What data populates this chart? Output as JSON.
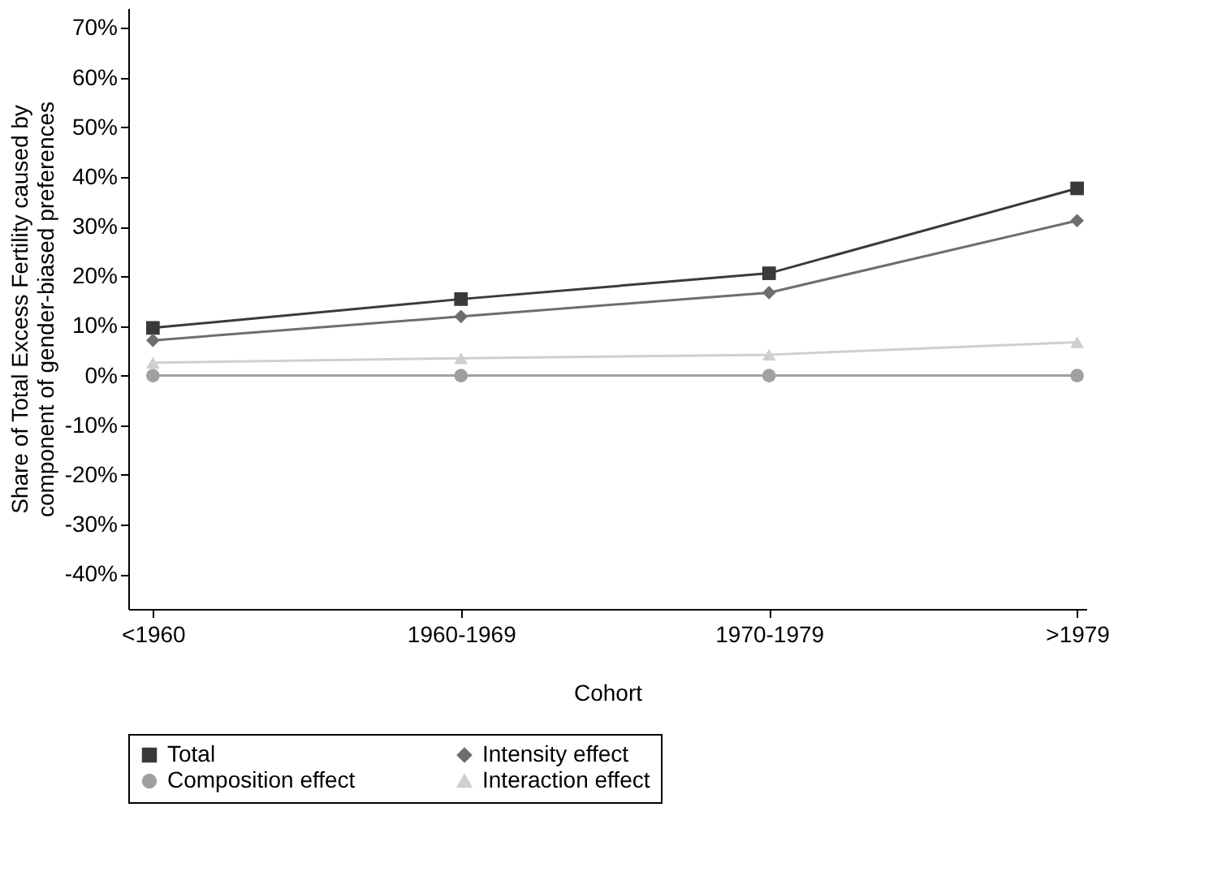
{
  "chart_data": {
    "type": "line",
    "xlabel": "Cohort",
    "ylabel": "Share of Total Excess Fertility caused by\ncomponent of gender-biased preferences",
    "categories": [
      "<1960",
      "1960-1969",
      "1970-1979",
      ">1979"
    ],
    "series": [
      {
        "name": "Total",
        "color": "#3a3a3a",
        "marker": "square",
        "values": [
          9.6,
          15.4,
          20.6,
          37.7
        ]
      },
      {
        "name": "Intensity effect",
        "color": "#6e6e6e",
        "marker": "diamond",
        "values": [
          7.1,
          11.9,
          16.7,
          31.2
        ]
      },
      {
        "name": "Composition effect",
        "color": "#a0a0a0",
        "marker": "circle",
        "values": [
          0,
          0,
          0,
          0
        ]
      },
      {
        "name": "Interaction effect",
        "color": "#cfcfcf",
        "marker": "triangle",
        "values": [
          2.6,
          3.5,
          4.2,
          6.7
        ]
      }
    ],
    "ylim": [
      -47,
      74
    ],
    "yticks": [
      {
        "value": -40,
        "label": "-40%"
      },
      {
        "value": -30,
        "label": "-30%"
      },
      {
        "value": -20,
        "label": "-20%"
      },
      {
        "value": -10,
        "label": "-10%"
      },
      {
        "value": 0,
        "label": "0%"
      },
      {
        "value": 10,
        "label": "10%"
      },
      {
        "value": 20,
        "label": "20%"
      },
      {
        "value": 30,
        "label": "30%"
      },
      {
        "value": 40,
        "label": "40%"
      },
      {
        "value": 50,
        "label": "50%"
      },
      {
        "value": 60,
        "label": "60%"
      },
      {
        "value": 70,
        "label": "70%"
      }
    ],
    "grid": false,
    "legend": "bottom",
    "line_style": "solid"
  }
}
